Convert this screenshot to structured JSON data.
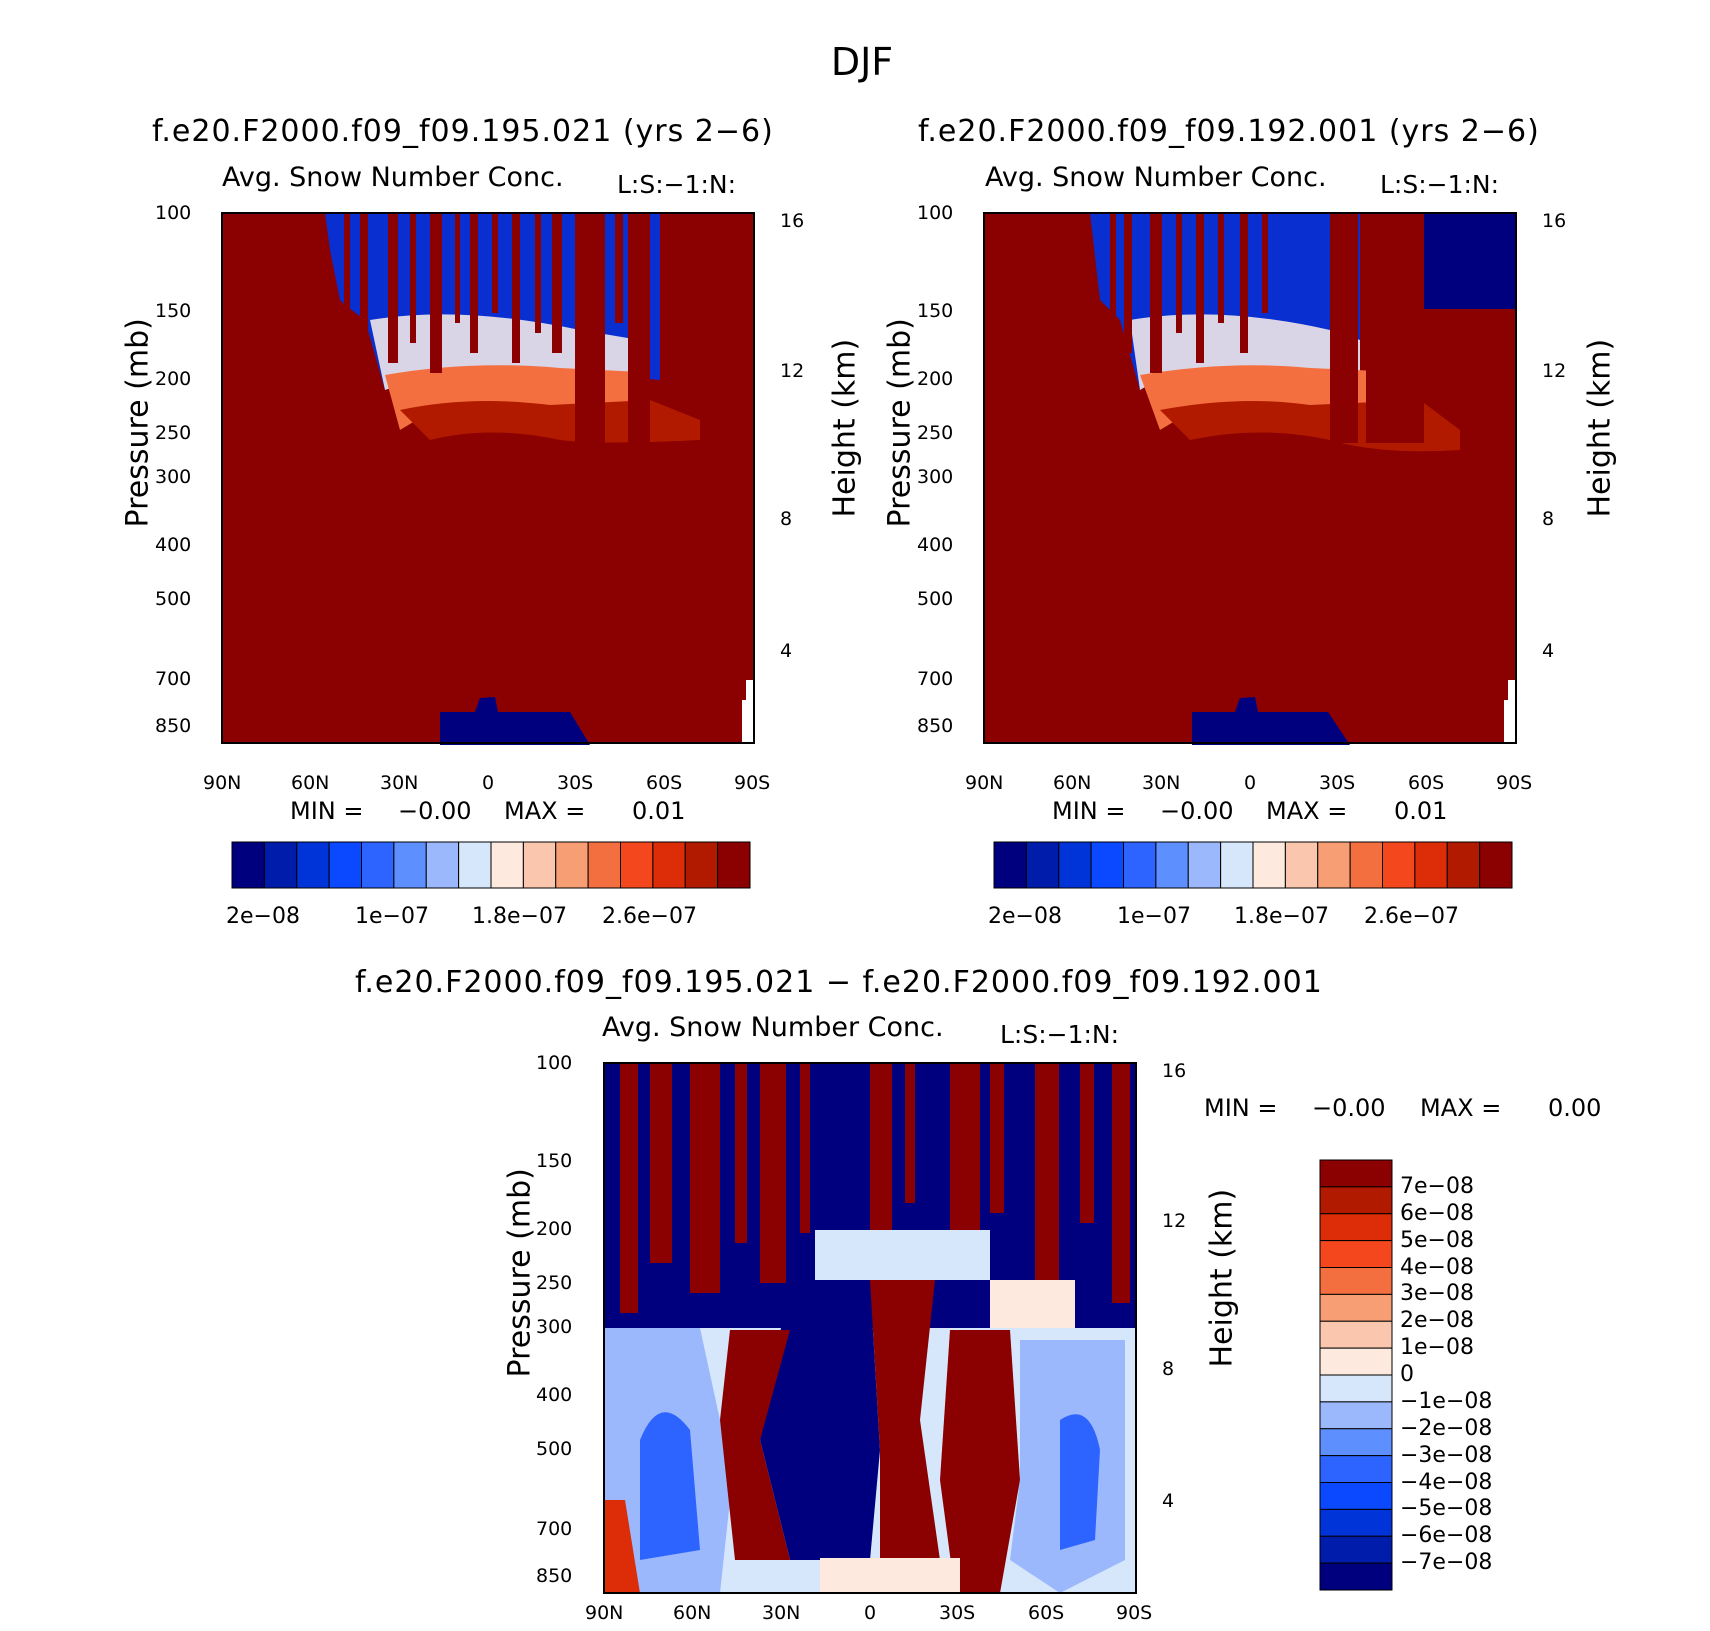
{
  "figure_title": "DJF",
  "colors": {
    "dark_red": "#8b0000",
    "dark_blue": "#00007f",
    "diff_palette": [
      "#00007f",
      "#001cab",
      "#0034d9",
      "#0a49ff",
      "#2d64ff",
      "#5e8fff",
      "#9cb8fc",
      "#d6e7fb",
      "#fde9dd",
      "#fac7ae",
      "#f89e74",
      "#f46f3f",
      "#f4471e",
      "#dc2c08",
      "#b21a00",
      "#8b0000"
    ]
  },
  "panels": [
    {
      "title": "f.e20.F2000.f09_f09.195.021 (yrs 2−6)",
      "subtitle": "Avg. Snow Number Conc.",
      "tag": "L:S:−1:N:",
      "ylabel_left": "Pressure (mb)",
      "ylabel_right": "Height (km)",
      "min_label": "MIN =",
      "min_value": "−0.00",
      "max_label": "MAX =",
      "max_value": "0.01",
      "colorbar_labels": [
        "2e−08",
        "1e−07",
        "1.8e−07",
        "2.6e−07"
      ]
    },
    {
      "title": "f.e20.F2000.f09_f09.192.001 (yrs 2−6)",
      "subtitle": "Avg. Snow Number Conc.",
      "tag": "L:S:−1:N:",
      "ylabel_left": "Pressure (mb)",
      "ylabel_right": "Height (km)",
      "min_label": "MIN =",
      "min_value": "−0.00",
      "max_label": "MAX =",
      "max_value": "0.01",
      "colorbar_labels": [
        "2e−08",
        "1e−07",
        "1.8e−07",
        "2.6e−07"
      ]
    },
    {
      "title": "f.e20.F2000.f09_f09.195.021 − f.e20.F2000.f09_f09.192.001",
      "subtitle": "Avg. Snow Number Conc.",
      "tag": "L:S:−1:N:",
      "ylabel_left": "Pressure (mb)",
      "ylabel_right": "Height (km)",
      "min_label": "MIN =",
      "min_value": "−0.00",
      "max_label": "MAX =",
      "max_value": "0.00",
      "colorbar_labels": [
        "7e−08",
        "6e−08",
        "5e−08",
        "4e−08",
        "3e−08",
        "2e−08",
        "1e−08",
        "0",
        "−1e−08",
        "−2e−08",
        "−3e−08",
        "−4e−08",
        "−5e−08",
        "−6e−08",
        "−7e−08"
      ]
    }
  ],
  "chart_data": [
    {
      "type": "heatmap",
      "title": "f.e20.F2000.f09_f09.195.021 (yrs 2−6)",
      "x_ticks": [
        "90N",
        "60N",
        "30N",
        "0",
        "30S",
        "60S",
        "90S"
      ],
      "y_left_ticks": [
        "100",
        "150",
        "200",
        "250",
        "300",
        "400",
        "500",
        "700",
        "850"
      ],
      "y_right_ticks": [
        "16",
        "12",
        "8",
        "4"
      ],
      "xlim": [
        90,
        -90
      ],
      "ylim_mb": [
        100,
        1000
      ],
      "y_scale": "log",
      "colorbar_levels": [
        "2e−08",
        "1e−07",
        "1.8e−07",
        "2.6e−07"
      ],
      "min": "−0.00",
      "max": "0.01"
    },
    {
      "type": "heatmap",
      "title": "f.e20.F2000.f09_f09.192.001 (yrs 2−6)",
      "x_ticks": [
        "90N",
        "60N",
        "30N",
        "0",
        "30S",
        "60S",
        "90S"
      ],
      "y_left_ticks": [
        "100",
        "150",
        "200",
        "250",
        "300",
        "400",
        "500",
        "700",
        "850"
      ],
      "y_right_ticks": [
        "16",
        "12",
        "8",
        "4"
      ],
      "xlim": [
        90,
        -90
      ],
      "ylim_mb": [
        100,
        1000
      ],
      "y_scale": "log",
      "colorbar_levels": [
        "2e−08",
        "1e−07",
        "1.8e−07",
        "2.6e−07"
      ],
      "min": "−0.00",
      "max": "0.01"
    },
    {
      "type": "heatmap",
      "title": "f.e20.F2000.f09_f09.195.021 − f.e20.F2000.f09_f09.192.001",
      "x_ticks": [
        "90N",
        "60N",
        "30N",
        "0",
        "30S",
        "60S",
        "90S"
      ],
      "y_left_ticks": [
        "100",
        "150",
        "200",
        "250",
        "300",
        "400",
        "500",
        "700",
        "850"
      ],
      "y_right_ticks": [
        "16",
        "12",
        "8",
        "4"
      ],
      "xlim": [
        90,
        -90
      ],
      "ylim_mb": [
        100,
        1000
      ],
      "y_scale": "log",
      "colorbar_levels": [
        "7e−08",
        "6e−08",
        "5e−08",
        "4e−08",
        "3e−08",
        "2e−08",
        "1e−08",
        "0",
        "−1e−08",
        "−2e−08",
        "−3e−08",
        "−4e−08",
        "−5e−08",
        "−6e−08",
        "−7e−08"
      ],
      "min": "−0.00",
      "max": "0.00"
    }
  ]
}
